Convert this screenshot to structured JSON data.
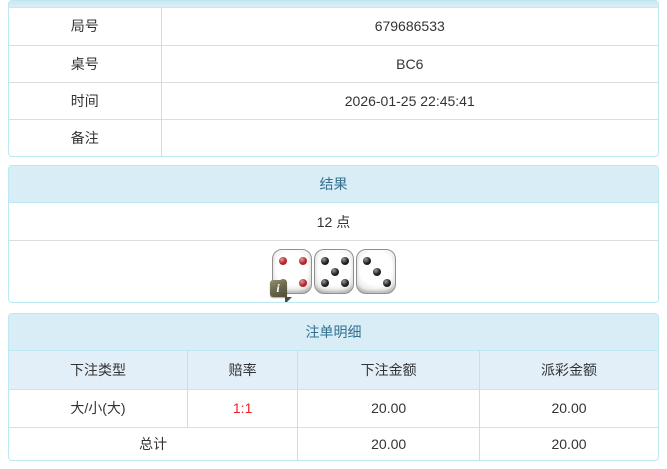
{
  "colors": {
    "panel_border": "#bce8f1",
    "heading_bg": "#d9edf7",
    "heading_text": "#31708f",
    "table_divider": "#dddddd",
    "column_header_bg": "#e3eff8",
    "odds_red": "#ee2222",
    "die_pip_red": "#b5232a",
    "die_pip_black": "#1f1f1f"
  },
  "info_table": {
    "rows": [
      {
        "label": "局号",
        "value": "679686533"
      },
      {
        "label": "桌号",
        "value": "BC6"
      },
      {
        "label": "时间",
        "value": "2026-01-25 22:45:41"
      },
      {
        "label": "备注",
        "value": ""
      }
    ]
  },
  "result_panel": {
    "title": "结果",
    "points": "12 点",
    "dice": [
      {
        "value": 4,
        "pip_color": "#b5232a"
      },
      {
        "value": 5,
        "pip_color": "#1f1f1f"
      },
      {
        "value": 3,
        "pip_color": "#1f1f1f"
      }
    ],
    "info_badge": "i"
  },
  "bets_panel": {
    "title": "注单明细",
    "columns": [
      "下注类型",
      "赔率",
      "下注金额",
      "派彩金额"
    ],
    "rows": [
      {
        "bet_type": "大/小(大)",
        "odds": "1:1",
        "bet_amount": "20.00",
        "payout": "20.00"
      }
    ],
    "total": {
      "label": "总计",
      "bet_amount": "20.00",
      "payout": "20.00"
    }
  }
}
